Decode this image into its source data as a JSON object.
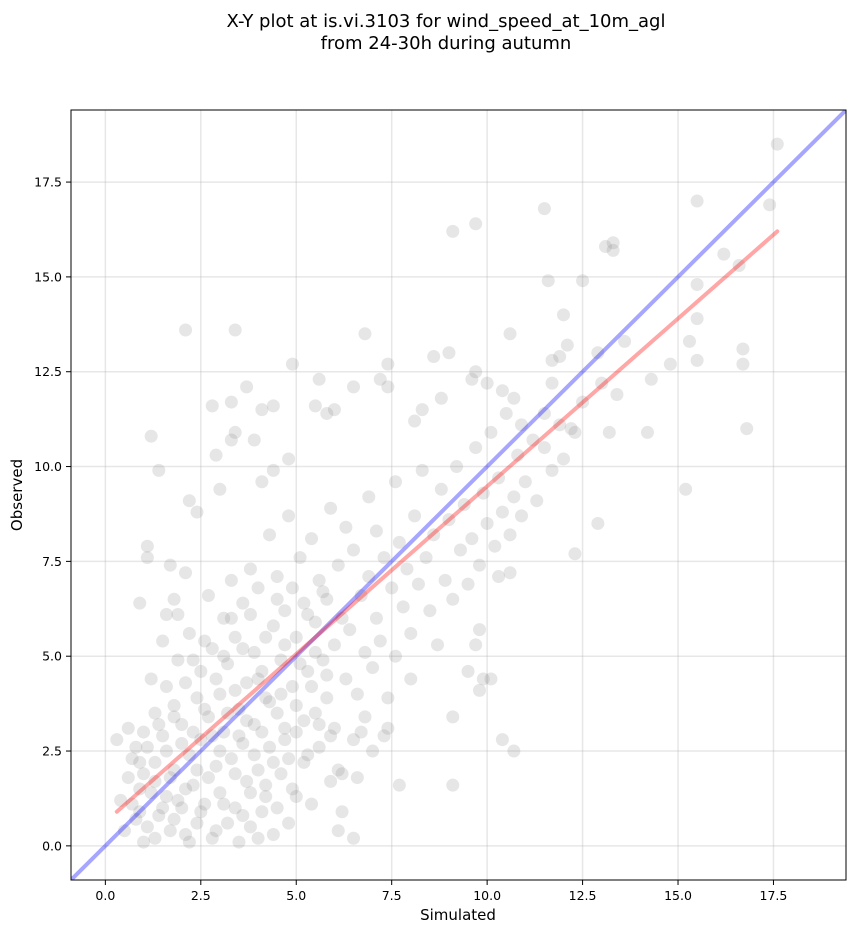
{
  "chart_data": {
    "type": "scatter",
    "title": [
      "X-Y plot at is.vi.3103 for wind_speed_at_10m_agl",
      "from 24-30h during autumn"
    ],
    "xlabel": "Simulated",
    "ylabel": "Observed",
    "xlim": [
      -0.9,
      19.4
    ],
    "ylim": [
      -0.9,
      19.4
    ],
    "xticks": [
      0.0,
      2.5,
      5.0,
      7.5,
      10.0,
      12.5,
      15.0,
      17.5
    ],
    "yticks": [
      0.0,
      2.5,
      5.0,
      7.5,
      10.0,
      12.5,
      15.0,
      17.5
    ],
    "xtick_labels": [
      "0.0",
      "2.5",
      "5.0",
      "7.5",
      "10.0",
      "12.5",
      "15.0",
      "17.5"
    ],
    "ytick_labels": [
      "0.0",
      "2.5",
      "5.0",
      "7.5",
      "10.0",
      "12.5",
      "15.0",
      "17.5"
    ],
    "grid": true,
    "colors": {
      "points": "#808080",
      "identity_line": "#0000ff",
      "fit_line": "#ff0000"
    },
    "reference_lines": [
      {
        "kind": "identity",
        "x": [
          -0.9,
          19.4
        ],
        "y": [
          -0.9,
          19.4
        ],
        "color": "#0000ff"
      },
      {
        "kind": "regression",
        "x": [
          0.3,
          17.6
        ],
        "y": [
          0.9,
          16.2
        ],
        "color": "#ff0000"
      }
    ],
    "points": [
      [
        2.1,
        13.6
      ],
      [
        3.4,
        13.6
      ],
      [
        1.2,
        10.8
      ],
      [
        1.4,
        9.9
      ],
      [
        2.2,
        9.1
      ],
      [
        2.4,
        8.8
      ],
      [
        1.1,
        7.9
      ],
      [
        1.1,
        7.6
      ],
      [
        1.7,
        7.4
      ],
      [
        2.1,
        7.2
      ],
      [
        0.9,
        6.4
      ],
      [
        1.6,
        6.1
      ],
      [
        1.8,
        6.5
      ],
      [
        2.8,
        11.6
      ],
      [
        2.9,
        10.3
      ],
      [
        3.0,
        9.4
      ],
      [
        3.3,
        11.7
      ],
      [
        3.4,
        10.9
      ],
      [
        3.3,
        10.7
      ],
      [
        3.7,
        12.1
      ],
      [
        3.9,
        10.7
      ],
      [
        4.1,
        11.5
      ],
      [
        4.4,
        11.6
      ],
      [
        4.4,
        9.9
      ],
      [
        4.1,
        9.6
      ],
      [
        4.8,
        10.2
      ],
      [
        4.9,
        12.7
      ],
      [
        5.5,
        11.6
      ],
      [
        5.6,
        12.3
      ],
      [
        5.8,
        11.4
      ],
      [
        6.0,
        11.5
      ],
      [
        6.5,
        12.1
      ],
      [
        6.8,
        13.5
      ],
      [
        7.2,
        12.3
      ],
      [
        7.4,
        12.7
      ],
      [
        7.4,
        12.1
      ],
      [
        8.3,
        11.5
      ],
      [
        8.1,
        11.2
      ],
      [
        8.6,
        12.9
      ],
      [
        9.0,
        13.0
      ],
      [
        9.1,
        16.2
      ],
      [
        9.7,
        16.4
      ],
      [
        8.8,
        11.8
      ],
      [
        9.6,
        12.3
      ],
      [
        9.7,
        12.5
      ],
      [
        10.0,
        12.2
      ],
      [
        10.4,
        12.0
      ],
      [
        10.7,
        11.8
      ],
      [
        10.6,
        13.5
      ],
      [
        10.9,
        11.1
      ],
      [
        11.5,
        11.4
      ],
      [
        11.5,
        16.8
      ],
      [
        11.6,
        14.9
      ],
      [
        11.7,
        12.8
      ],
      [
        11.9,
        12.9
      ],
      [
        11.7,
        12.2
      ],
      [
        12.1,
        13.2
      ],
      [
        12.0,
        14.0
      ],
      [
        12.5,
        14.9
      ],
      [
        13.1,
        15.8
      ],
      [
        13.3,
        15.9
      ],
      [
        13.3,
        15.7
      ],
      [
        12.9,
        13.0
      ],
      [
        13.0,
        12.2
      ],
      [
        13.6,
        13.3
      ],
      [
        13.4,
        11.9
      ],
      [
        13.2,
        10.9
      ],
      [
        12.2,
        11.0
      ],
      [
        12.3,
        10.9
      ],
      [
        12.0,
        10.2
      ],
      [
        12.5,
        11.7
      ],
      [
        12.9,
        8.5
      ],
      [
        12.3,
        7.7
      ],
      [
        14.2,
        10.9
      ],
      [
        14.3,
        12.3
      ],
      [
        14.8,
        12.7
      ],
      [
        15.3,
        13.3
      ],
      [
        15.5,
        12.8
      ],
      [
        15.5,
        17.0
      ],
      [
        15.5,
        14.8
      ],
      [
        15.5,
        13.9
      ],
      [
        15.2,
        9.4
      ],
      [
        16.2,
        15.6
      ],
      [
        16.6,
        15.3
      ],
      [
        16.7,
        13.1
      ],
      [
        16.7,
        12.7
      ],
      [
        17.4,
        16.9
      ],
      [
        17.6,
        18.5
      ],
      [
        16.8,
        11.0
      ],
      [
        9.8,
        5.7
      ],
      [
        9.7,
        5.3
      ],
      [
        9.5,
        4.6
      ],
      [
        9.9,
        4.4
      ],
      [
        9.8,
        4.1
      ],
      [
        9.1,
        3.4
      ],
      [
        9.1,
        1.6
      ],
      [
        10.4,
        2.8
      ],
      [
        10.7,
        2.5
      ],
      [
        8.0,
        4.4
      ],
      [
        7.7,
        1.6
      ],
      [
        6.2,
        0.9
      ],
      [
        6.5,
        0.2
      ],
      [
        6.1,
        0.4
      ],
      [
        6.2,
        1.9
      ],
      [
        6.6,
        1.8
      ],
      [
        6.8,
        3.4
      ],
      [
        7.0,
        2.5
      ],
      [
        7.3,
        2.9
      ],
      [
        7.4,
        3.1
      ],
      [
        10.1,
        4.4
      ],
      [
        10.3,
        7.1
      ],
      [
        10.6,
        7.2
      ],
      [
        0.3,
        2.8
      ],
      [
        0.4,
        1.2
      ],
      [
        0.6,
        1.8
      ],
      [
        0.6,
        3.1
      ],
      [
        0.7,
        2.3
      ],
      [
        0.8,
        0.7
      ],
      [
        0.9,
        1.5
      ],
      [
        0.9,
        2.2
      ],
      [
        1.0,
        0.1
      ],
      [
        1.0,
        3.0
      ],
      [
        1.1,
        2.6
      ],
      [
        1.2,
        4.4
      ],
      [
        1.3,
        3.5
      ],
      [
        1.3,
        1.7
      ],
      [
        1.4,
        0.8
      ],
      [
        1.5,
        5.4
      ],
      [
        1.5,
        2.9
      ],
      [
        1.6,
        4.2
      ],
      [
        1.6,
        1.3
      ],
      [
        1.7,
        0.4
      ],
      [
        1.8,
        3.7
      ],
      [
        1.8,
        2.0
      ],
      [
        1.9,
        6.1
      ],
      [
        1.9,
        4.9
      ],
      [
        2.0,
        1.0
      ],
      [
        2.0,
        3.2
      ],
      [
        2.1,
        0.3
      ],
      [
        2.2,
        2.4
      ],
      [
        2.2,
        5.6
      ],
      [
        2.3,
        1.6
      ],
      [
        2.4,
        3.9
      ],
      [
        2.4,
        0.6
      ],
      [
        2.5,
        2.8
      ],
      [
        2.5,
        4.6
      ],
      [
        2.6,
        1.1
      ],
      [
        2.7,
        6.6
      ],
      [
        2.7,
        3.4
      ],
      [
        2.8,
        0.2
      ],
      [
        2.8,
        5.2
      ],
      [
        2.9,
        2.1
      ],
      [
        3.0,
        4.0
      ],
      [
        3.0,
        1.4
      ],
      [
        3.1,
        6.0
      ],
      [
        3.1,
        3.0
      ],
      [
        3.2,
        0.6
      ],
      [
        3.2,
        4.8
      ],
      [
        3.3,
        2.3
      ],
      [
        3.3,
        7.0
      ],
      [
        3.4,
        1.0
      ],
      [
        3.4,
        5.5
      ],
      [
        3.5,
        3.6
      ],
      [
        3.5,
        0.1
      ],
      [
        3.6,
        6.4
      ],
      [
        3.6,
        2.7
      ],
      [
        3.7,
        4.3
      ],
      [
        3.7,
        1.7
      ],
      [
        3.8,
        7.3
      ],
      [
        3.8,
        0.5
      ],
      [
        3.9,
        5.1
      ],
      [
        3.9,
        3.2
      ],
      [
        4.0,
        2.0
      ],
      [
        4.0,
        6.8
      ],
      [
        4.1,
        0.9
      ],
      [
        4.1,
        4.6
      ],
      [
        4.2,
        3.9
      ],
      [
        4.2,
        1.3
      ],
      [
        4.3,
        8.2
      ],
      [
        4.3,
        2.6
      ],
      [
        4.4,
        5.8
      ],
      [
        4.4,
        0.3
      ],
      [
        4.5,
        3.5
      ],
      [
        4.5,
        7.1
      ],
      [
        4.6,
        1.9
      ],
      [
        4.6,
        4.9
      ],
      [
        4.7,
        6.2
      ],
      [
        4.7,
        2.8
      ],
      [
        4.8,
        0.6
      ],
      [
        4.8,
        8.7
      ],
      [
        4.9,
        4.2
      ],
      [
        4.9,
        1.5
      ],
      [
        5.0,
        5.5
      ],
      [
        5.0,
        3.0
      ],
      [
        5.1,
        7.6
      ],
      [
        5.2,
        2.2
      ],
      [
        5.2,
        6.4
      ],
      [
        5.3,
        4.6
      ],
      [
        5.4,
        1.1
      ],
      [
        5.4,
        8.1
      ],
      [
        5.5,
        3.5
      ],
      [
        5.5,
        5.9
      ],
      [
        5.6,
        2.6
      ],
      [
        5.6,
        7.0
      ],
      [
        5.7,
        4.9
      ],
      [
        5.8,
        3.9
      ],
      [
        5.8,
        6.5
      ],
      [
        5.9,
        1.7
      ],
      [
        5.9,
        8.9
      ],
      [
        6.0,
        5.3
      ],
      [
        6.0,
        3.1
      ],
      [
        6.1,
        7.4
      ],
      [
        6.1,
        2.0
      ],
      [
        6.2,
        6.0
      ],
      [
        6.3,
        4.4
      ],
      [
        6.3,
        8.4
      ],
      [
        6.4,
        5.7
      ],
      [
        6.5,
        2.8
      ],
      [
        6.5,
        7.8
      ],
      [
        6.6,
        4.0
      ],
      [
        6.7,
        6.6
      ],
      [
        6.7,
        3.0
      ],
      [
        6.8,
        5.1
      ],
      [
        6.9,
        9.2
      ],
      [
        6.9,
        7.1
      ],
      [
        7.0,
        4.7
      ],
      [
        7.1,
        6.0
      ],
      [
        7.1,
        8.3
      ],
      [
        7.2,
        5.4
      ],
      [
        7.3,
        7.6
      ],
      [
        7.4,
        3.9
      ],
      [
        7.5,
        6.8
      ],
      [
        7.6,
        9.6
      ],
      [
        7.6,
        5.0
      ],
      [
        7.7,
        8.0
      ],
      [
        7.8,
        6.3
      ],
      [
        7.9,
        7.3
      ],
      [
        8.0,
        5.6
      ],
      [
        8.1,
        8.7
      ],
      [
        8.2,
        6.9
      ],
      [
        8.3,
        9.9
      ],
      [
        8.4,
        7.6
      ],
      [
        8.5,
        6.2
      ],
      [
        8.6,
        8.2
      ],
      [
        8.7,
        5.3
      ],
      [
        8.8,
        9.4
      ],
      [
        8.9,
        7.0
      ],
      [
        9.0,
        8.6
      ],
      [
        9.1,
        6.5
      ],
      [
        9.2,
        10.0
      ],
      [
        9.3,
        7.8
      ],
      [
        9.4,
        9.0
      ],
      [
        9.5,
        6.9
      ],
      [
        9.6,
        8.1
      ],
      [
        9.7,
        10.5
      ],
      [
        9.8,
        7.4
      ],
      [
        9.9,
        9.3
      ],
      [
        10.0,
        8.5
      ],
      [
        10.1,
        10.9
      ],
      [
        10.2,
        7.9
      ],
      [
        10.3,
        9.7
      ],
      [
        10.4,
        8.8
      ],
      [
        10.5,
        11.4
      ],
      [
        10.6,
        8.2
      ],
      [
        10.7,
        9.2
      ],
      [
        10.8,
        10.3
      ],
      [
        10.9,
        8.7
      ],
      [
        11.0,
        9.6
      ],
      [
        11.2,
        10.7
      ],
      [
        11.3,
        9.1
      ],
      [
        11.5,
        10.5
      ],
      [
        11.7,
        9.9
      ],
      [
        11.9,
        11.1
      ],
      [
        0.5,
        0.4
      ],
      [
        0.7,
        1.1
      ],
      [
        0.8,
        2.6
      ],
      [
        0.9,
        0.9
      ],
      [
        1.0,
        1.9
      ],
      [
        1.1,
        0.5
      ],
      [
        1.2,
        1.4
      ],
      [
        1.3,
        2.2
      ],
      [
        1.3,
        0.2
      ],
      [
        1.4,
        3.2
      ],
      [
        1.5,
        1.0
      ],
      [
        1.6,
        2.5
      ],
      [
        1.7,
        1.8
      ],
      [
        1.8,
        0.7
      ],
      [
        1.8,
        3.4
      ],
      [
        1.9,
        1.2
      ],
      [
        2.0,
        2.7
      ],
      [
        2.1,
        4.3
      ],
      [
        2.1,
        1.5
      ],
      [
        2.2,
        0.1
      ],
      [
        2.3,
        3.0
      ],
      [
        2.3,
        4.9
      ],
      [
        2.4,
        2.0
      ],
      [
        2.5,
        0.9
      ],
      [
        2.6,
        3.6
      ],
      [
        2.6,
        5.4
      ],
      [
        2.7,
        1.8
      ],
      [
        2.8,
        2.9
      ],
      [
        2.9,
        4.4
      ],
      [
        2.9,
        0.4
      ],
      [
        3.0,
        2.5
      ],
      [
        3.1,
        5.0
      ],
      [
        3.1,
        1.1
      ],
      [
        3.2,
        3.5
      ],
      [
        3.3,
        6.0
      ],
      [
        3.4,
        1.9
      ],
      [
        3.4,
        4.1
      ],
      [
        3.5,
        2.9
      ],
      [
        3.6,
        0.8
      ],
      [
        3.6,
        5.2
      ],
      [
        3.7,
        3.3
      ],
      [
        3.8,
        1.4
      ],
      [
        3.8,
        6.1
      ],
      [
        3.9,
        2.4
      ],
      [
        4.0,
        4.4
      ],
      [
        4.0,
        0.2
      ],
      [
        4.1,
        3.0
      ],
      [
        4.2,
        5.5
      ],
      [
        4.2,
        1.6
      ],
      [
        4.3,
        3.8
      ],
      [
        4.4,
        2.2
      ],
      [
        4.5,
        6.5
      ],
      [
        4.5,
        1.0
      ],
      [
        4.6,
        4.0
      ],
      [
        4.7,
        3.1
      ],
      [
        4.7,
        5.3
      ],
      [
        4.8,
        2.3
      ],
      [
        4.9,
        6.8
      ],
      [
        5.0,
        3.7
      ],
      [
        5.0,
        1.3
      ],
      [
        5.1,
        4.8
      ],
      [
        5.2,
        3.3
      ],
      [
        5.3,
        6.1
      ],
      [
        5.3,
        2.4
      ],
      [
        5.4,
        4.2
      ],
      [
        5.5,
        5.1
      ],
      [
        5.6,
        3.2
      ],
      [
        5.7,
        6.7
      ],
      [
        5.8,
        4.5
      ],
      [
        5.9,
        2.9
      ]
    ]
  }
}
